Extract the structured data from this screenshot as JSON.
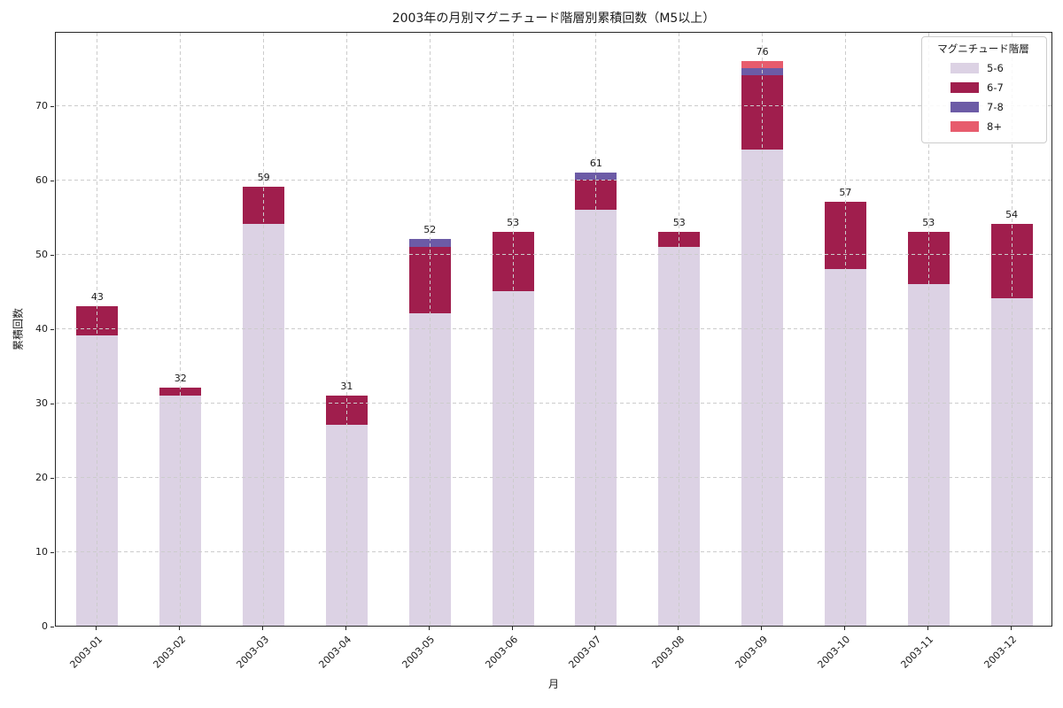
{
  "chart_data": {
    "type": "bar",
    "stacked": true,
    "title": "2003年の月別マグニチュード階層別累積回数（M5以上）",
    "xlabel": "月",
    "ylabel": "累積回数",
    "categories": [
      "2003-01",
      "2003-02",
      "2003-03",
      "2003-04",
      "2003-05",
      "2003-06",
      "2003-07",
      "2003-08",
      "2003-09",
      "2003-10",
      "2003-11",
      "2003-12"
    ],
    "series": [
      {
        "name": "5-6",
        "color": "#dcd2e4",
        "values": [
          39,
          31,
          54,
          27,
          42,
          45,
          56,
          51,
          64,
          48,
          46,
          44
        ]
      },
      {
        "name": "6-7",
        "color": "#a01e4d",
        "values": [
          4,
          1,
          5,
          4,
          9,
          8,
          4,
          2,
          10,
          9,
          7,
          10
        ]
      },
      {
        "name": "7-8",
        "color": "#6c5ba6",
        "values": [
          0,
          0,
          0,
          0,
          1,
          0,
          1,
          0,
          1,
          0,
          0,
          0
        ]
      },
      {
        "name": "8+",
        "color": "#e75c6d",
        "values": [
          0,
          0,
          0,
          0,
          0,
          0,
          0,
          0,
          1,
          0,
          0,
          0
        ]
      }
    ],
    "totals": [
      43,
      32,
      59,
      31,
      52,
      53,
      61,
      53,
      76,
      57,
      53,
      54
    ],
    "ylim": [
      0,
      80
    ],
    "yticks": [
      0,
      10,
      20,
      30,
      40,
      50,
      60,
      70
    ],
    "grid": true,
    "grid_color": "#cccccc",
    "spine_color": "#262626",
    "legend": {
      "title": "マグニチュード階層",
      "position": "upper right"
    }
  }
}
